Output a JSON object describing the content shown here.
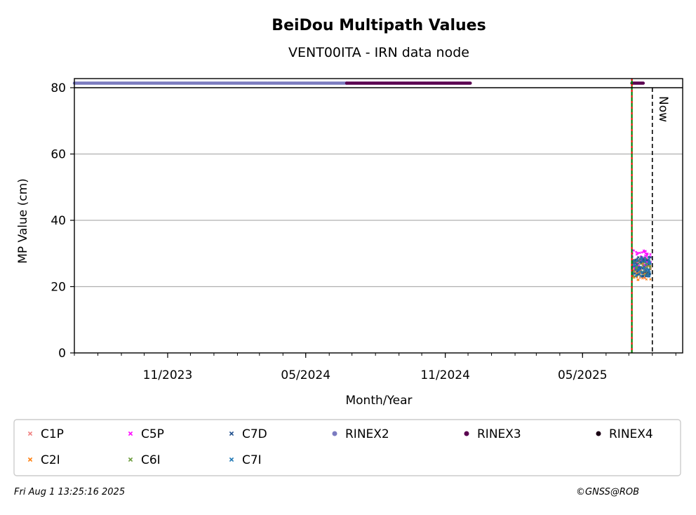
{
  "chart_data": {
    "type": "scatter",
    "title": "BeiDou Multipath Values",
    "subtitle": "VENT00ITA - IRN data node",
    "xlabel": "Month/Year",
    "ylabel": "MP Value (cm)",
    "ylim": [
      0,
      80
    ],
    "xlim": [
      "2023-07-01",
      "2025-09-10"
    ],
    "yticks": [
      0,
      20,
      40,
      60,
      80
    ],
    "xticks": [
      {
        "date": "2023-11-01",
        "label": "11/2023"
      },
      {
        "date": "2024-05-01",
        "label": "05/2024"
      },
      {
        "date": "2024-11-01",
        "label": "11/2024"
      },
      {
        "date": "2025-05-01",
        "label": "05/2025"
      }
    ],
    "grid": "horizontal",
    "now_marker": {
      "date": "2025-08-01",
      "label": "Now"
    },
    "vertical_lines": [
      {
        "date": "2025-07-05",
        "colors": [
          "#008000",
          "#ff0000"
        ],
        "style": "dashed"
      }
    ],
    "rinex_bars": [
      {
        "name": "RINEX2",
        "start": "2023-07-01",
        "end": "2024-06-24",
        "color": "#7b7bc0"
      },
      {
        "name": "RINEX3",
        "start": "2024-06-24",
        "end": "2024-12-04",
        "color": "#5a0050"
      },
      {
        "name": "RINEX3",
        "start": "2025-07-05",
        "end": "2025-07-20",
        "color": "#5a0050"
      }
    ],
    "mp_range": {
      "start": "2025-07-05",
      "end": "2025-07-30",
      "center": 26,
      "spread": 3
    },
    "series": [
      {
        "name": "C1P",
        "color": "#f08080",
        "marker": "x",
        "mean": 25.5
      },
      {
        "name": "C2I",
        "color": "#ff7f0e",
        "marker": "x",
        "mean": 25.0
      },
      {
        "name": "C5P",
        "color": "#ff00ff",
        "marker": "x",
        "mean": 28.0
      },
      {
        "name": "C6I",
        "color": "#6a9a3a",
        "marker": "x",
        "mean": 26.0
      },
      {
        "name": "C7D",
        "color": "#1f4e8c",
        "marker": "x",
        "mean": 26.0
      },
      {
        "name": "C7I",
        "color": "#1f77b4",
        "marker": "x",
        "mean": 26.0
      },
      {
        "name": "RINEX2",
        "color": "#7b7bc0",
        "marker": "dot"
      },
      {
        "name": "RINEX3",
        "color": "#5a0050",
        "marker": "dot"
      },
      {
        "name": "RINEX4",
        "color": "#1a0014",
        "marker": "dot"
      }
    ],
    "legend_order": [
      "C1P",
      "C5P",
      "C7D",
      "RINEX2",
      "RINEX3",
      "RINEX4",
      "C2I",
      "C6I",
      "C7I"
    ]
  },
  "footer": {
    "timestamp": "Fri Aug  1 13:25:16 2025",
    "copyright": "©GNSS@ROB"
  }
}
